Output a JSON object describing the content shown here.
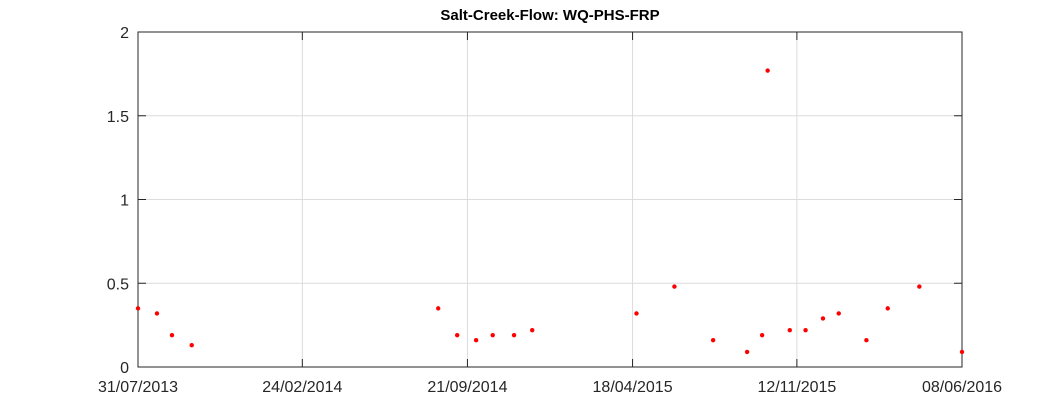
{
  "chart_data": {
    "type": "scatter",
    "title": "Salt-Creek-Flow: WQ-PHS-FRP",
    "xlabel": "",
    "ylabel": "",
    "x_axis_type": "date",
    "xlim": [
      "31/07/2013",
      "08/06/2016"
    ],
    "ylim": [
      0,
      2
    ],
    "x_ticks": [
      "31/07/2013",
      "24/02/2014",
      "21/09/2014",
      "18/04/2015",
      "12/11/2015",
      "08/06/2016"
    ],
    "y_ticks": [
      "0",
      "0.5",
      "1",
      "1.5",
      "2"
    ],
    "grid": true,
    "marker_color": "#ff0000",
    "series": [
      {
        "points": [
          {
            "x": "31/07/2013",
            "y": 0.35
          },
          {
            "x": "24/08/2013",
            "y": 0.32
          },
          {
            "x": "12/09/2013",
            "y": 0.19
          },
          {
            "x": "07/10/2013",
            "y": 0.13
          },
          {
            "x": "15/08/2014",
            "y": 0.35
          },
          {
            "x": "08/09/2014",
            "y": 0.19
          },
          {
            "x": "02/10/2014",
            "y": 0.16
          },
          {
            "x": "23/10/2014",
            "y": 0.19
          },
          {
            "x": "19/11/2014",
            "y": 0.19
          },
          {
            "x": "12/12/2014",
            "y": 0.22
          },
          {
            "x": "23/04/2015",
            "y": 0.32
          },
          {
            "x": "10/06/2015",
            "y": 0.48
          },
          {
            "x": "29/07/2015",
            "y": 0.16
          },
          {
            "x": "10/09/2015",
            "y": 0.09
          },
          {
            "x": "29/09/2015",
            "y": 0.19
          },
          {
            "x": "06/10/2015",
            "y": 1.77
          },
          {
            "x": "03/11/2015",
            "y": 0.22
          },
          {
            "x": "23/11/2015",
            "y": 0.22
          },
          {
            "x": "15/12/2015",
            "y": 0.29
          },
          {
            "x": "04/01/2016",
            "y": 0.32
          },
          {
            "x": "08/02/2016",
            "y": 0.16
          },
          {
            "x": "06/03/2016",
            "y": 0.35
          },
          {
            "x": "15/04/2016",
            "y": 0.48
          },
          {
            "x": "08/06/2016",
            "y": 0.09
          }
        ]
      }
    ]
  }
}
